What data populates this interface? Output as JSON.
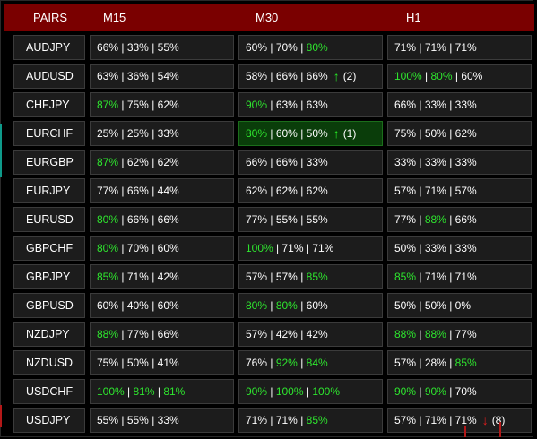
{
  "header": {
    "pairs": "PAIRS",
    "m15": "M15",
    "m30": "M30",
    "h1": "H1"
  },
  "colors": {
    "header_bg": "#7a0000",
    "cell_bg": "#1c1c1c",
    "green": "#2ee62e",
    "red": "#e81c1c",
    "highlight_bg": "#0a3d0a"
  },
  "rows": [
    {
      "pair": "AUDJPY",
      "m15": {
        "v": [
          "66%",
          "33%",
          "55%"
        ],
        "g": [
          false,
          false,
          false
        ]
      },
      "m30": {
        "v": [
          "60%",
          "70%",
          "80%"
        ],
        "g": [
          false,
          false,
          true
        ]
      },
      "h1": {
        "v": [
          "71%",
          "71%",
          "71%"
        ],
        "g": [
          false,
          false,
          false
        ]
      }
    },
    {
      "pair": "AUDUSD",
      "m15": {
        "v": [
          "63%",
          "36%",
          "54%"
        ],
        "g": [
          false,
          false,
          false
        ]
      },
      "m30": {
        "v": [
          "58%",
          "66%",
          "66%"
        ],
        "g": [
          false,
          false,
          false
        ],
        "signal": "up",
        "count": "(2)"
      },
      "h1": {
        "v": [
          "100%",
          "80%",
          "60%"
        ],
        "g": [
          true,
          true,
          false
        ]
      }
    },
    {
      "pair": "CHFJPY",
      "m15": {
        "v": [
          "87%",
          "75%",
          "62%"
        ],
        "g": [
          true,
          false,
          false
        ]
      },
      "m30": {
        "v": [
          "90%",
          "63%",
          "63%"
        ],
        "g": [
          true,
          false,
          false
        ]
      },
      "h1": {
        "v": [
          "66%",
          "33%",
          "33%"
        ],
        "g": [
          false,
          false,
          false
        ]
      }
    },
    {
      "pair": "EURCHF",
      "m15": {
        "v": [
          "25%",
          "25%",
          "33%"
        ],
        "g": [
          false,
          false,
          false
        ]
      },
      "m30": {
        "v": [
          "80%",
          "60%",
          "50%"
        ],
        "g": [
          true,
          false,
          false
        ],
        "signal": "up",
        "count": "(1)",
        "highlight": true
      },
      "h1": {
        "v": [
          "75%",
          "50%",
          "62%"
        ],
        "g": [
          false,
          false,
          false
        ]
      }
    },
    {
      "pair": "EURGBP",
      "m15": {
        "v": [
          "87%",
          "62%",
          "62%"
        ],
        "g": [
          true,
          false,
          false
        ]
      },
      "m30": {
        "v": [
          "66%",
          "66%",
          "33%"
        ],
        "g": [
          false,
          false,
          false
        ]
      },
      "h1": {
        "v": [
          "33%",
          "33%",
          "33%"
        ],
        "g": [
          false,
          false,
          false
        ]
      }
    },
    {
      "pair": "EURJPY",
      "m15": {
        "v": [
          "77%",
          "66%",
          "44%"
        ],
        "g": [
          false,
          false,
          false
        ]
      },
      "m30": {
        "v": [
          "62%",
          "62%",
          "62%"
        ],
        "g": [
          false,
          false,
          false
        ]
      },
      "h1": {
        "v": [
          "57%",
          "71%",
          "57%"
        ],
        "g": [
          false,
          false,
          false
        ]
      }
    },
    {
      "pair": "EURUSD",
      "m15": {
        "v": [
          "80%",
          "66%",
          "66%"
        ],
        "g": [
          true,
          false,
          false
        ]
      },
      "m30": {
        "v": [
          "77%",
          "55%",
          "55%"
        ],
        "g": [
          false,
          false,
          false
        ]
      },
      "h1": {
        "v": [
          "77%",
          "88%",
          "66%"
        ],
        "g": [
          false,
          true,
          false
        ]
      }
    },
    {
      "pair": "GBPCHF",
      "m15": {
        "v": [
          "80%",
          "70%",
          "60%"
        ],
        "g": [
          true,
          false,
          false
        ]
      },
      "m30": {
        "v": [
          "100%",
          "71%",
          "71%"
        ],
        "g": [
          true,
          false,
          false
        ]
      },
      "h1": {
        "v": [
          "50%",
          "33%",
          "33%"
        ],
        "g": [
          false,
          false,
          false
        ]
      }
    },
    {
      "pair": "GBPJPY",
      "m15": {
        "v": [
          "85%",
          "71%",
          "42%"
        ],
        "g": [
          true,
          false,
          false
        ]
      },
      "m30": {
        "v": [
          "57%",
          "57%",
          "85%"
        ],
        "g": [
          false,
          false,
          true
        ]
      },
      "h1": {
        "v": [
          "85%",
          "71%",
          "71%"
        ],
        "g": [
          true,
          false,
          false
        ]
      }
    },
    {
      "pair": "GBPUSD",
      "m15": {
        "v": [
          "60%",
          "40%",
          "60%"
        ],
        "g": [
          false,
          false,
          false
        ]
      },
      "m30": {
        "v": [
          "80%",
          "80%",
          "60%"
        ],
        "g": [
          true,
          true,
          false
        ]
      },
      "h1": {
        "v": [
          "50%",
          "50%",
          "0%"
        ],
        "g": [
          false,
          false,
          false
        ]
      }
    },
    {
      "pair": "NZDJPY",
      "m15": {
        "v": [
          "88%",
          "77%",
          "66%"
        ],
        "g": [
          true,
          false,
          false
        ]
      },
      "m30": {
        "v": [
          "57%",
          "42%",
          "42%"
        ],
        "g": [
          false,
          false,
          false
        ]
      },
      "h1": {
        "v": [
          "88%",
          "88%",
          "77%"
        ],
        "g": [
          true,
          true,
          false
        ]
      }
    },
    {
      "pair": "NZDUSD",
      "m15": {
        "v": [
          "75%",
          "50%",
          "41%"
        ],
        "g": [
          false,
          false,
          false
        ]
      },
      "m30": {
        "v": [
          "76%",
          "92%",
          "84%"
        ],
        "g": [
          false,
          true,
          true
        ]
      },
      "h1": {
        "v": [
          "57%",
          "28%",
          "85%"
        ],
        "g": [
          false,
          false,
          true
        ]
      }
    },
    {
      "pair": "USDCHF",
      "m15": {
        "v": [
          "100%",
          "81%",
          "81%"
        ],
        "g": [
          true,
          true,
          true
        ]
      },
      "m30": {
        "v": [
          "90%",
          "100%",
          "100%"
        ],
        "g": [
          true,
          true,
          true
        ]
      },
      "h1": {
        "v": [
          "90%",
          "90%",
          "70%"
        ],
        "g": [
          true,
          true,
          false
        ]
      }
    },
    {
      "pair": "USDJPY",
      "m15": {
        "v": [
          "55%",
          "55%",
          "33%"
        ],
        "g": [
          false,
          false,
          false
        ]
      },
      "m30": {
        "v": [
          "71%",
          "71%",
          "85%"
        ],
        "g": [
          false,
          false,
          true
        ]
      },
      "h1": {
        "v": [
          "57%",
          "71%",
          "71%"
        ],
        "g": [
          false,
          false,
          false
        ],
        "signal": "down",
        "count": "(8)"
      }
    }
  ]
}
